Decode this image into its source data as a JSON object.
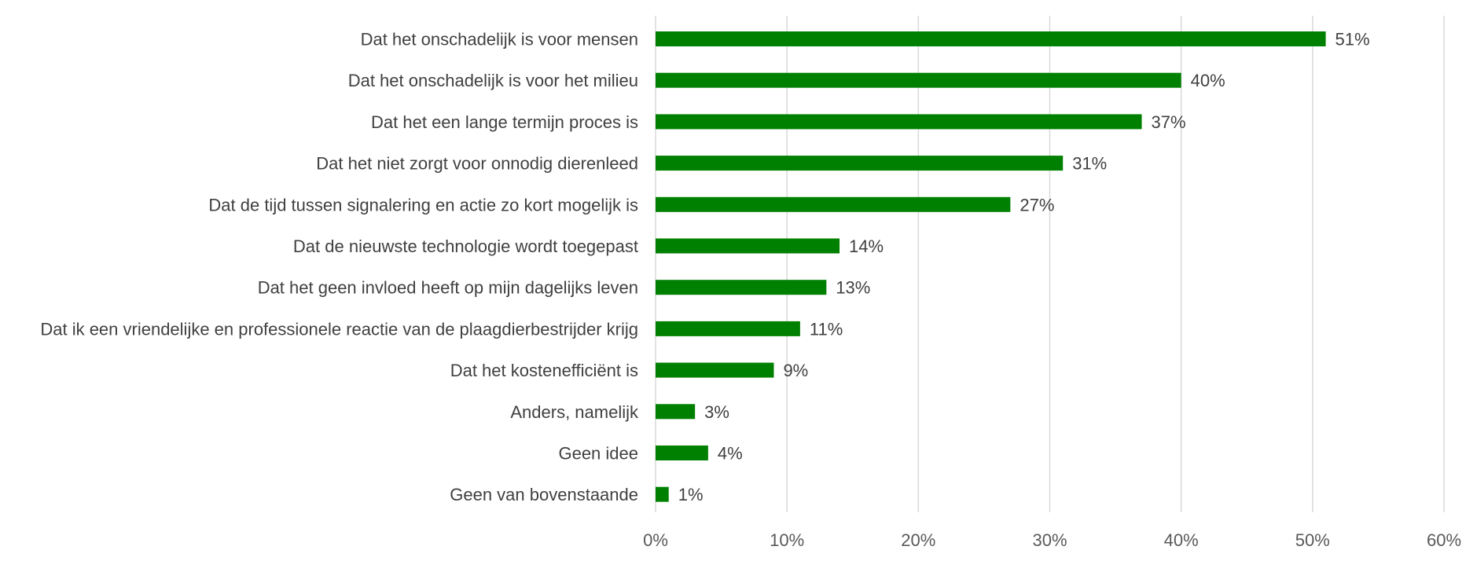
{
  "chart_data": {
    "type": "bar",
    "orientation": "horizontal",
    "categories": [
      "Dat het onschadelijk is voor mensen",
      "Dat het onschadelijk is voor het milieu",
      "Dat het een lange termijn proces is",
      "Dat het niet zorgt voor onnodig dierenleed",
      "Dat de tijd tussen signalering en actie zo kort mogelijk is",
      "Dat de nieuwste technologie wordt toegepast",
      "Dat het geen invloed heeft op mijn dagelijks leven",
      "Dat ik een vriendelijke en professionele reactie van de plaagdierbestrijder krijg",
      "Dat het kostenefficiënt is",
      "Anders, namelijk",
      "Geen idee",
      "Geen van bovenstaande"
    ],
    "values": [
      51,
      40,
      37,
      31,
      27,
      14,
      13,
      11,
      9,
      3,
      4,
      1
    ],
    "data_labels": [
      "51%",
      "40%",
      "37%",
      "31%",
      "27%",
      "14%",
      "13%",
      "11%",
      "9%",
      "3%",
      "4%",
      "1%"
    ],
    "x_ticks": [
      "0%",
      "10%",
      "20%",
      "30%",
      "40%",
      "50%",
      "60%"
    ],
    "xlim": [
      0,
      60
    ],
    "grid": true,
    "legend": "none",
    "bar_color": "#008000"
  }
}
